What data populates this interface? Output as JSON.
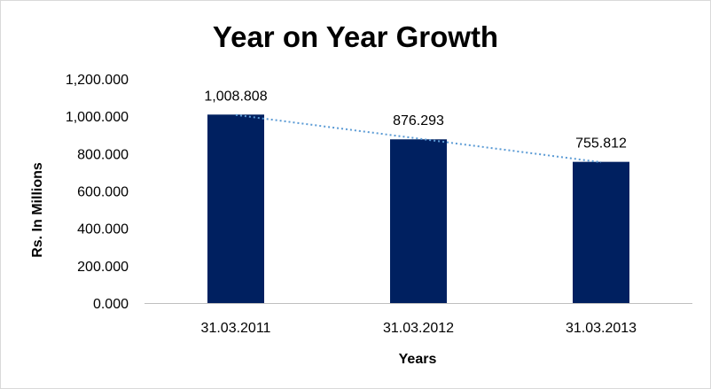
{
  "chart_data": {
    "type": "bar",
    "title": "Year on Year Growth",
    "xlabel": "Years",
    "ylabel": "Rs. In Millions",
    "categories": [
      "31.03.2011",
      "31.03.2012",
      "31.03.2013"
    ],
    "values": [
      1008.808,
      876.293,
      755.812
    ],
    "data_labels": [
      "1,008.808",
      "876.293",
      "755.812"
    ],
    "ylim": [
      0,
      1200
    ],
    "yticks": [
      0,
      200,
      400,
      600,
      800,
      1000,
      1200
    ],
    "ytick_labels": [
      "0.000",
      "200.000",
      "400.000",
      "600.000",
      "800.000",
      "1,000.000",
      "1,200.000"
    ],
    "grid": false,
    "legend": "none",
    "trendline": {
      "type": "linear",
      "style": "dotted"
    },
    "colors": {
      "bar": "#002060",
      "trendline": "#5b9bd5",
      "axis": "#bfbfbf"
    }
  }
}
